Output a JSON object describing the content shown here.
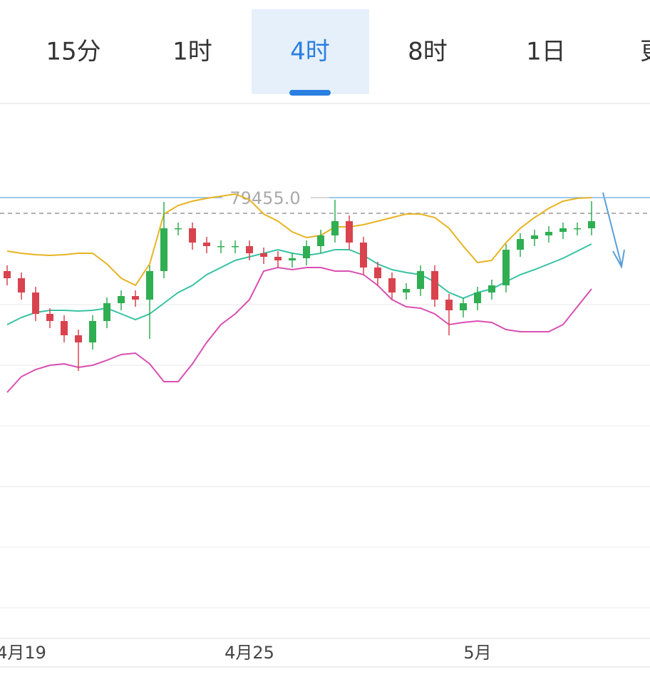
{
  "tabs": [
    "15分",
    "1时",
    "4时",
    "8时",
    "1日",
    "更多"
  ],
  "selected_tab": 2,
  "chart_data": {
    "type": "candlestick",
    "categories": [
      null,
      "4月19",
      null,
      null,
      null,
      null,
      null,
      null,
      null,
      null,
      null,
      null,
      null,
      null,
      null,
      null,
      null,
      "4月25",
      null,
      null,
      null,
      null,
      null,
      null,
      null,
      null,
      null,
      null,
      null,
      null,
      null,
      null,
      null,
      "5月",
      null,
      null,
      null,
      null,
      null,
      null,
      null,
      null
    ],
    "open": [
      78425,
      78325,
      78125,
      77825,
      77725,
      77525,
      77425,
      77725,
      77975,
      78075,
      78025,
      78425,
      79025,
      79025,
      78825,
      78775,
      78775,
      78775,
      78675,
      78625,
      78575,
      78605,
      78775,
      78925,
      79125,
      78825,
      78475,
      78325,
      78125,
      78175,
      78425,
      78025,
      77875,
      77975,
      78125,
      78225,
      78725,
      78875,
      78925,
      78975,
      79025,
      79025
    ],
    "high": [
      78505,
      78405,
      78205,
      77905,
      77805,
      77605,
      77805,
      78055,
      78155,
      78155,
      78505,
      79395,
      79105,
      79105,
      78905,
      78855,
      78855,
      78855,
      78755,
      78705,
      78685,
      78855,
      79005,
      79425,
      79205,
      78905,
      78555,
      78405,
      78255,
      78505,
      78505,
      78105,
      78055,
      78205,
      78305,
      78805,
      78955,
      79005,
      79055,
      79105,
      79105,
      79405
    ],
    "low": [
      78225,
      78025,
      77725,
      77625,
      77425,
      77025,
      77325,
      77625,
      77875,
      77925,
      77475,
      78325,
      78925,
      78725,
      78675,
      78675,
      78675,
      78575,
      78525,
      78475,
      78475,
      78505,
      78675,
      78825,
      78725,
      78375,
      78225,
      78025,
      78025,
      78075,
      77925,
      77525,
      77775,
      77875,
      78025,
      78125,
      78625,
      78775,
      78825,
      78875,
      78925,
      78925
    ],
    "close": [
      78325,
      78125,
      77825,
      77725,
      77525,
      77425,
      77725,
      77975,
      78075,
      78025,
      78425,
      79025,
      79025,
      78825,
      78775,
      78775,
      78775,
      78675,
      78625,
      78575,
      78605,
      78775,
      78925,
      79125,
      78825,
      78475,
      78325,
      78125,
      78175,
      78425,
      78025,
      77875,
      77975,
      78125,
      78225,
      78725,
      78875,
      78925,
      78975,
      79025,
      79025,
      79125
    ],
    "up_color": "#2fae52",
    "down_color": "#d8434e",
    "bands": [
      {
        "color": "#e8b322",
        "values": [
          78705,
          78675,
          78655,
          78645,
          78655,
          78675,
          78675,
          78525,
          78325,
          78225,
          78525,
          79225,
          79345,
          79405,
          79445,
          79475,
          79505,
          79425,
          79225,
          79125,
          78975,
          78895,
          78925,
          79045,
          79045,
          79075,
          79125,
          79175,
          79225,
          79225,
          79175,
          79025,
          78775,
          78545,
          78575,
          78825,
          79025,
          79175,
          79305,
          79405,
          79445,
          79455
        ]
      },
      {
        "color": "#38c2a2",
        "values": [
          77675,
          77775,
          77845,
          77875,
          77875,
          77865,
          77875,
          77905,
          77825,
          77745,
          77825,
          77975,
          78125,
          78225,
          78375,
          78475,
          78575,
          78625,
          78675,
          78725,
          78675,
          78645,
          78675,
          78725,
          78725,
          78645,
          78525,
          78445,
          78405,
          78375,
          78275,
          78125,
          78045,
          78125,
          78175,
          78275,
          78375,
          78445,
          78525,
          78605,
          78705,
          78805
        ]
      },
      {
        "color": "#d94fb2",
        "values": [
          76725,
          76945,
          77045,
          77105,
          77125,
          77075,
          77105,
          77175,
          77255,
          77275,
          77125,
          76875,
          76875,
          77125,
          77425,
          77675,
          77825,
          78025,
          78425,
          78475,
          78445,
          78475,
          78475,
          78425,
          78425,
          78375,
          78225,
          78025,
          77925,
          77905,
          77825,
          77675,
          77705,
          77725,
          77705,
          77605,
          77575,
          77575,
          77575,
          77675,
          77925,
          78175
        ]
      }
    ],
    "price_line": {
      "value": 79455,
      "label": "79455.0",
      "color": "#7db8e6"
    },
    "last_price": 79235,
    "ylim": [
      73275,
      80775
    ]
  }
}
